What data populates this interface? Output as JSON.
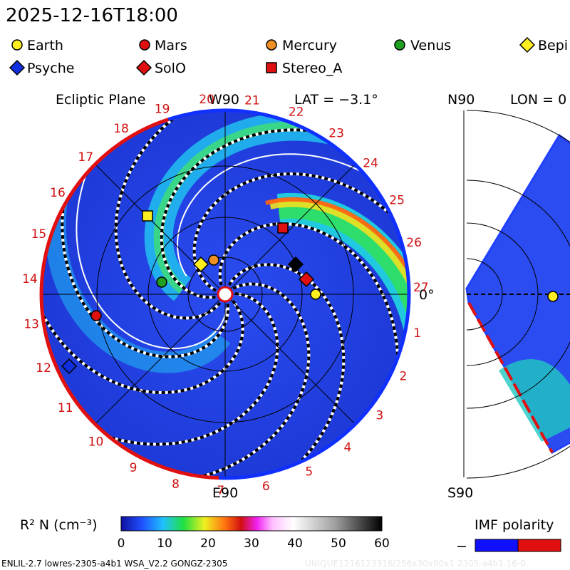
{
  "header": {
    "title": "2025-12-16T18:00"
  },
  "legend": {
    "items": [
      {
        "label": "Earth"
      },
      {
        "label": "Mars"
      },
      {
        "label": "Mercury"
      },
      {
        "label": "Venus"
      },
      {
        "label": "Bepi"
      },
      {
        "label": "Psyche"
      },
      {
        "label": "SolO"
      },
      {
        "label": "Stereo_A"
      }
    ]
  },
  "ecliptic_panel": {
    "title": "Ecliptic Plane",
    "top_label": "W90",
    "latitude": "LAT = −3.1°",
    "right_label": "0°",
    "bottom_label": "E90",
    "sector_labels": [
      "1",
      "2",
      "3",
      "4",
      "5",
      "6",
      "7",
      "8",
      "9",
      "10",
      "11",
      "12",
      "13",
      "14",
      "15",
      "16",
      "17",
      "18",
      "19",
      "20",
      "21",
      "22",
      "23",
      "24",
      "25",
      "26",
      "27"
    ]
  },
  "meridional_panel": {
    "top_label": "N90",
    "longitude": "LON = 0",
    "bottom_label": "S90"
  },
  "colorbar": {
    "label": "R² N (cm⁻³)",
    "ticks": [
      "0",
      "10",
      "20",
      "30",
      "40",
      "50",
      "60"
    ]
  },
  "polarity": {
    "label": "IMF polarity",
    "minus": "−"
  },
  "footer": {
    "model": "ENLIL-2.7 lowres-2305-a4b1 WSA_V2.2 GONGZ-2305",
    "watermark": "UNIQUE1216123316/256x30x90x1 2305-a4b1.16-0"
  }
}
